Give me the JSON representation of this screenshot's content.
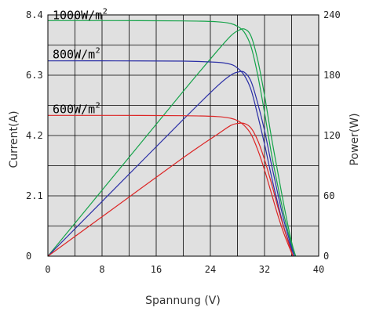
{
  "chart_data": {
    "type": "line",
    "xlabel": "Spannung (V)",
    "ylabel_left": "Current(A)",
    "ylabel_right": "Power(W)",
    "xlim": [
      0,
      40
    ],
    "ylim_left": [
      0,
      8.4
    ],
    "ylim_right": [
      0,
      240
    ],
    "x_ticks": [
      "0",
      "8",
      "16",
      "24",
      "32",
      "40"
    ],
    "y_left_ticks": [
      "0",
      "2.1",
      "4.2",
      "6.3",
      "8.4"
    ],
    "y_right_ticks": [
      "0",
      "60",
      "120",
      "180",
      "240"
    ],
    "grid": true,
    "series": [
      {
        "name": "1000W/m",
        "name_superscript": "2",
        "color": "#16a34a",
        "current": [
          [
            0,
            8.2
          ],
          [
            10,
            8.2
          ],
          [
            20,
            8.19
          ],
          [
            25,
            8.16
          ],
          [
            27,
            8.1
          ],
          [
            28,
            8.0
          ],
          [
            29,
            7.8
          ],
          [
            30,
            7.3
          ],
          [
            31,
            6.3
          ],
          [
            32,
            5.0
          ],
          [
            33,
            3.6
          ],
          [
            34,
            2.4
          ],
          [
            35,
            1.3
          ],
          [
            36,
            0.4
          ],
          [
            36.6,
            0
          ]
        ],
        "power": [
          [
            0,
            0
          ],
          [
            10,
            82
          ],
          [
            20,
            164
          ],
          [
            25,
            204
          ],
          [
            27,
            219
          ],
          [
            28,
            224
          ],
          [
            29,
            226
          ],
          [
            30,
            219
          ],
          [
            31,
            195
          ],
          [
            32,
            160
          ],
          [
            33,
            119
          ],
          [
            34,
            82
          ],
          [
            35,
            46
          ],
          [
            36,
            14
          ],
          [
            36.6,
            0
          ]
        ]
      },
      {
        "name": "800W/m",
        "name_superscript": "2",
        "color": "#2b2fa6",
        "current": [
          [
            0,
            6.8
          ],
          [
            10,
            6.8
          ],
          [
            20,
            6.79
          ],
          [
            25,
            6.75
          ],
          [
            27,
            6.68
          ],
          [
            28,
            6.55
          ],
          [
            29,
            6.3
          ],
          [
            30,
            5.8
          ],
          [
            31,
            4.9
          ],
          [
            32,
            3.9
          ],
          [
            33,
            2.8
          ],
          [
            34,
            1.8
          ],
          [
            35,
            0.9
          ],
          [
            36.4,
            0
          ]
        ],
        "power": [
          [
            0,
            0
          ],
          [
            10,
            68
          ],
          [
            20,
            136
          ],
          [
            25,
            169
          ],
          [
            27,
            180
          ],
          [
            28,
            183
          ],
          [
            29,
            183
          ],
          [
            30,
            174
          ],
          [
            31,
            152
          ],
          [
            32,
            125
          ],
          [
            33,
            92
          ],
          [
            34,
            61
          ],
          [
            35,
            32
          ],
          [
            36.4,
            0
          ]
        ]
      },
      {
        "name": "600W/m",
        "name_superscript": "2",
        "color": "#dc2626",
        "current": [
          [
            0,
            4.9
          ],
          [
            10,
            4.9
          ],
          [
            20,
            4.89
          ],
          [
            25,
            4.86
          ],
          [
            27,
            4.8
          ],
          [
            28,
            4.72
          ],
          [
            29,
            4.55
          ],
          [
            30,
            4.25
          ],
          [
            31,
            3.7
          ],
          [
            32,
            3.0
          ],
          [
            33,
            2.2
          ],
          [
            34,
            1.4
          ],
          [
            35,
            0.7
          ],
          [
            36.2,
            0
          ]
        ],
        "power": [
          [
            0,
            0
          ],
          [
            10,
            49
          ],
          [
            20,
            98
          ],
          [
            25,
            121
          ],
          [
            27,
            130
          ],
          [
            28,
            132
          ],
          [
            29,
            132
          ],
          [
            30,
            127.5
          ],
          [
            31,
            115
          ],
          [
            32,
            96
          ],
          [
            33,
            73
          ],
          [
            34,
            48
          ],
          [
            35,
            25
          ],
          [
            36.2,
            0
          ]
        ]
      }
    ]
  }
}
